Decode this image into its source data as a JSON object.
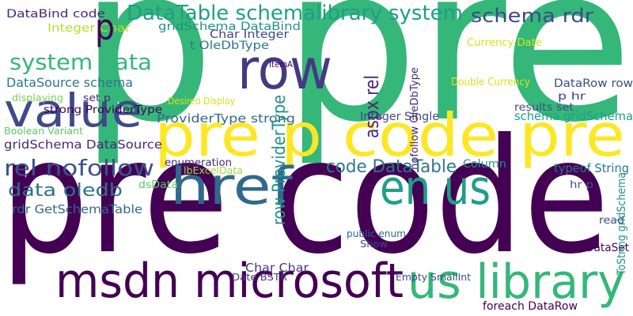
{
  "words": [
    "pre code",
    "p pre",
    "pre p code pre",
    "msdn microsoft",
    "us library",
    "value",
    "row",
    "href",
    "en us",
    "system data",
    "DataTable schemalibrary system",
    "schema rdr",
    "rel nofollow",
    "code DataTable",
    "data oledb",
    "DataSource schema",
    "gridSchema DataSource",
    "DataBind code",
    "Integer Char",
    "p",
    "rdr GetSchemaTable",
    "ProviderType strong",
    "gridSchema DataBind",
    "t OleDbType",
    "Char Integer",
    "DataRow row",
    "schema gridSchema",
    "Currency Date",
    "foreach DataRow",
    "enumeration",
    "lbExcelData",
    "Date BSTR",
    "Char Char",
    "Empty SmallInt",
    "dsData",
    "Column",
    "Integer Single",
    "Show",
    "DataSet",
    "read",
    "typeof String",
    "results set",
    "p hr",
    "hr p",
    "public enum",
    "strong ProviderType",
    "Boolean Variant",
    "displaying",
    "set p",
    "ToString gridSchema",
    "aspx rel",
    "row ProviderType",
    "nofollow OleDbType",
    "Double Currency",
    "Desired Display",
    "ItemA"
  ]
}
